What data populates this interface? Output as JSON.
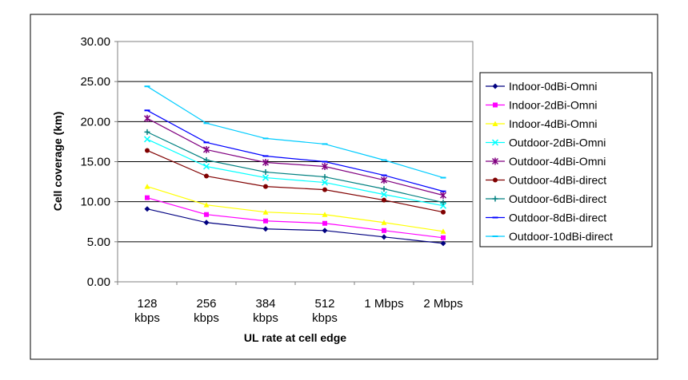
{
  "chart_data": {
    "type": "line",
    "title": "",
    "xlabel": "UL rate at cell edge",
    "ylabel": "Cell coverage (km)",
    "ylim": [
      0,
      30
    ],
    "y_ticks": [
      "0.00",
      "5.00",
      "10.00",
      "15.00",
      "20.00",
      "25.00",
      "30.00"
    ],
    "grid": "horizontal",
    "legend_position": "right",
    "categories": [
      [
        "128",
        "kbps"
      ],
      [
        "256",
        "kbps"
      ],
      [
        "384",
        "kbps"
      ],
      [
        "512",
        "kbps"
      ],
      [
        "1 Mbps"
      ],
      [
        "2 Mbps"
      ]
    ],
    "series": [
      {
        "name": "Indoor-0dBi-Omni",
        "color": "#000080",
        "marker": "diamond",
        "values": [
          9.1,
          7.4,
          6.6,
          6.4,
          5.6,
          4.8
        ]
      },
      {
        "name": "Indoor-2dBi-Omni",
        "color": "#ff00ff",
        "marker": "square",
        "values": [
          10.5,
          8.4,
          7.6,
          7.3,
          6.4,
          5.5
        ]
      },
      {
        "name": "Indoor-4dBi-Omni",
        "color": "#ffff00",
        "marker": "triangle",
        "values": [
          11.9,
          9.6,
          8.7,
          8.4,
          7.4,
          6.3
        ]
      },
      {
        "name": "Outdoor-2dBi-Omni",
        "color": "#00ffff",
        "marker": "x",
        "values": [
          17.8,
          14.4,
          13.0,
          12.4,
          10.9,
          9.5
        ]
      },
      {
        "name": "Outdoor-4dBi-Omni",
        "color": "#800080",
        "marker": "star",
        "values": [
          20.4,
          16.5,
          14.9,
          14.4,
          12.7,
          10.8
        ]
      },
      {
        "name": "Outdoor-4dBi-direct",
        "color": "#800000",
        "marker": "circle",
        "values": [
          16.4,
          13.2,
          11.9,
          11.5,
          10.2,
          8.7
        ]
      },
      {
        "name": "Outdoor-6dBi-direct",
        "color": "#008080",
        "marker": "plus",
        "values": [
          18.7,
          15.2,
          13.7,
          13.1,
          11.6,
          9.9
        ]
      },
      {
        "name": "Outdoor-8dBi-direct",
        "color": "#0000ff",
        "marker": "dash",
        "values": [
          21.4,
          17.4,
          15.7,
          15.0,
          13.3,
          11.3
        ]
      },
      {
        "name": "Outdoor-10dBi-direct",
        "color": "#00ccff",
        "marker": "dash",
        "values": [
          24.4,
          19.8,
          17.9,
          17.2,
          15.2,
          13.0
        ]
      }
    ]
  }
}
